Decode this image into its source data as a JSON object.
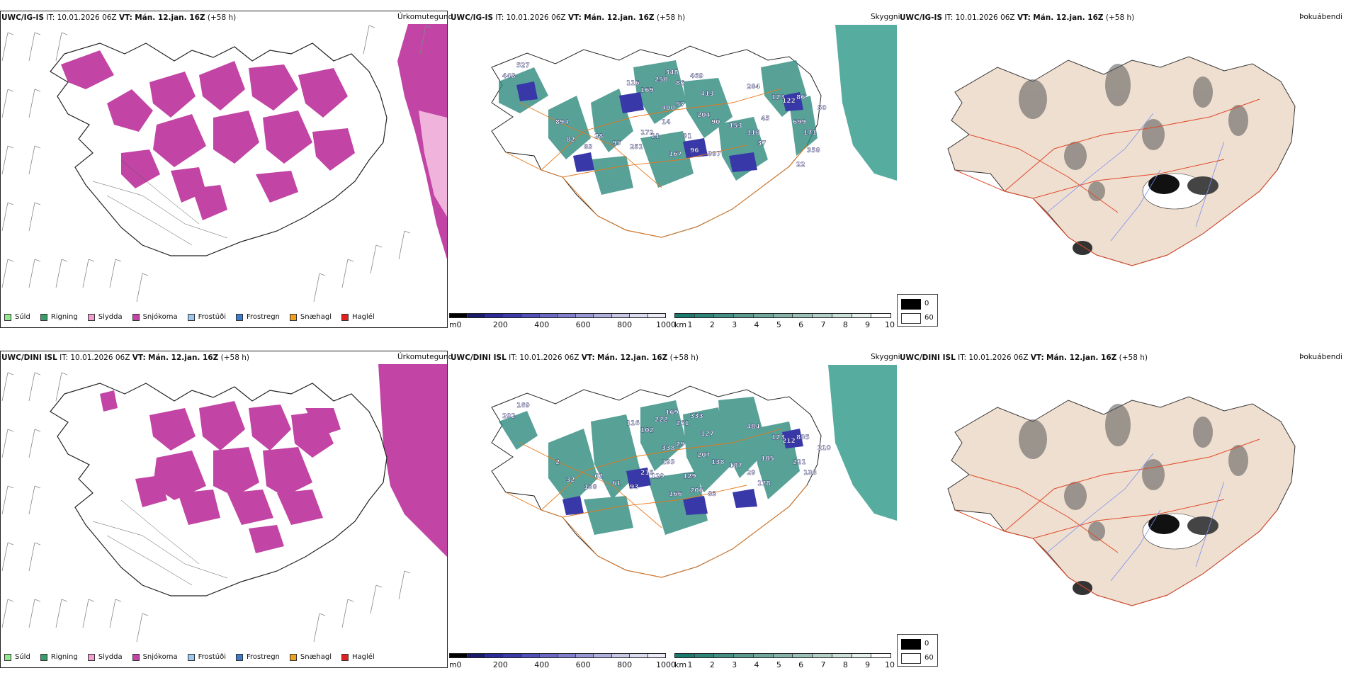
{
  "rows": [
    {
      "model": "UWC/IG-IS",
      "init_time": "10.01.2026 06Z",
      "valid_time": "Mán. 12.jan. 16Z",
      "lead": "(+58 h)",
      "precip_title": "Úrkomutegund",
      "cloud_title": "Skyggni",
      "fog_title": "Þokuábendi",
      "cloud_labels": [
        "448",
        "527",
        "894",
        "82",
        "83",
        "28",
        "95",
        "251",
        "172",
        "21",
        "14",
        "31",
        "167",
        "96",
        "997",
        "204",
        "90",
        "153",
        "116",
        "37",
        "45",
        "284",
        "123",
        "116",
        "169",
        "250",
        "348",
        "86",
        "469",
        "413",
        "57",
        "400",
        "122",
        "86",
        "50",
        "699",
        "171",
        "358",
        "22"
      ]
    },
    {
      "model": "UWC/DINI ISL",
      "init_time": "10.01.2026 06Z",
      "valid_time": "Mán. 12.jan. 16Z",
      "lead": "(+58 h)",
      "precip_title": "Úrkomutegund",
      "cloud_title": "Skyggni",
      "fog_title": "Þokuábendi",
      "cloud_labels": [
        "292",
        "169",
        "2",
        "32",
        "138",
        "62",
        "61",
        "93",
        "215",
        "129",
        "193",
        "129",
        "166",
        "206",
        "83",
        "207",
        "138",
        "187",
        "29",
        "178",
        "105",
        "484",
        "123",
        "116",
        "102",
        "222",
        "169",
        "261",
        "333",
        "127",
        "29",
        "338",
        "212",
        "835",
        "210",
        "221",
        "138"
      ]
    }
  ],
  "labels": {
    "it": "IT:",
    "vt": "VT:"
  },
  "precip_legend": [
    {
      "label": "Súld",
      "color": "#90e890"
    },
    {
      "label": "Rigning",
      "color": "#3a9a6a"
    },
    {
      "label": "Slydda",
      "color": "#f0a0d0"
    },
    {
      "label": "Snjókoma",
      "color": "#c244a4"
    },
    {
      "label": "Frostúði",
      "color": "#9cc8f0"
    },
    {
      "label": "Frostregn",
      "color": "#3c7cc8"
    },
    {
      "label": "Snæhagl",
      "color": "#f0a020"
    },
    {
      "label": "Haglél",
      "color": "#e02020"
    }
  ],
  "cloud_base_scale": {
    "unit": "m",
    "ticks": [
      "0",
      "200",
      "400",
      "600",
      "800",
      "1000"
    ],
    "colors": [
      "#000000",
      "#1a1a6a",
      "#2a2a9a",
      "#3a3aa8",
      "#5050b8",
      "#6a6ac4",
      "#8080cc",
      "#9898d4",
      "#b0b0dc",
      "#c8c8e6",
      "#dcdcf0",
      "#ececf8"
    ]
  },
  "visibility_scale": {
    "unit": "km",
    "ticks": [
      "1",
      "2",
      "3",
      "4",
      "5",
      "6",
      "7",
      "8",
      "9",
      "10"
    ],
    "colors": [
      "#1a7a6e",
      "#2e8478",
      "#458f84",
      "#5a9a90",
      "#70a69c",
      "#86b2aa",
      "#9cc0b8",
      "#b4cfc8",
      "#cce0da",
      "#e6f0ed",
      "#ffffff"
    ]
  },
  "fog_scale": {
    "high_label": "0",
    "low_label": "60"
  }
}
